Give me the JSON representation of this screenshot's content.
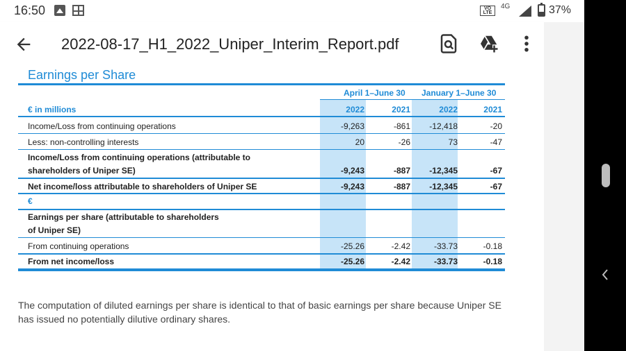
{
  "status_bar": {
    "time": "16:50",
    "volte": "VO LTE",
    "network": "4G",
    "battery": "37%"
  },
  "app_bar": {
    "title": "2022-08-17_H1_2022_Uniper_Interim_Report.pdf",
    "icons": [
      "back-arrow-icon",
      "find-in-document-icon",
      "add-to-drive-icon",
      "more-vert-icon"
    ]
  },
  "document": {
    "section_title": "Earnings per Share",
    "table": {
      "group_headers": [
        "April 1–June 30",
        "January 1–June 30"
      ],
      "unit_label": "€ in millions",
      "years": [
        "2022",
        "2021",
        "2022",
        "2021"
      ],
      "rows": [
        {
          "label": "Income/Loss from continuing operations",
          "values": [
            "-9,263",
            "-861",
            "-12,418",
            "-20"
          ]
        },
        {
          "label": "Less: non-controlling interests",
          "values": [
            "20",
            "-26",
            "73",
            "-47"
          ]
        },
        {
          "label": "Income/Loss from continuing operations (attributable to",
          "label2": "shareholders of Uniper SE)",
          "values": [
            "-9,243",
            "-887",
            "-12,345",
            "-67"
          ]
        },
        {
          "label": "Net income/loss attributable to shareholders of Uniper SE",
          "values": [
            "-9,243",
            "-887",
            "-12,345",
            "-67"
          ]
        },
        {
          "label": "€"
        },
        {
          "label": "Earnings per share (attributable to shareholders",
          "label2": "of Uniper SE)"
        },
        {
          "label": "From continuing operations",
          "values": [
            "-25.26",
            "-2.42",
            "-33.73",
            "-0.18"
          ]
        },
        {
          "label": "From net income/loss",
          "values": [
            "-25.26",
            "-2.42",
            "-33.73",
            "-0.18"
          ]
        }
      ]
    },
    "footnote": "The computation of diluted earnings per share is identical to that of basic earnings per share because Uniper SE has issued no potentially dilutive ordinary shares."
  },
  "colors": {
    "accent": "#1f8bd6",
    "shade": "#c7e4f8"
  }
}
